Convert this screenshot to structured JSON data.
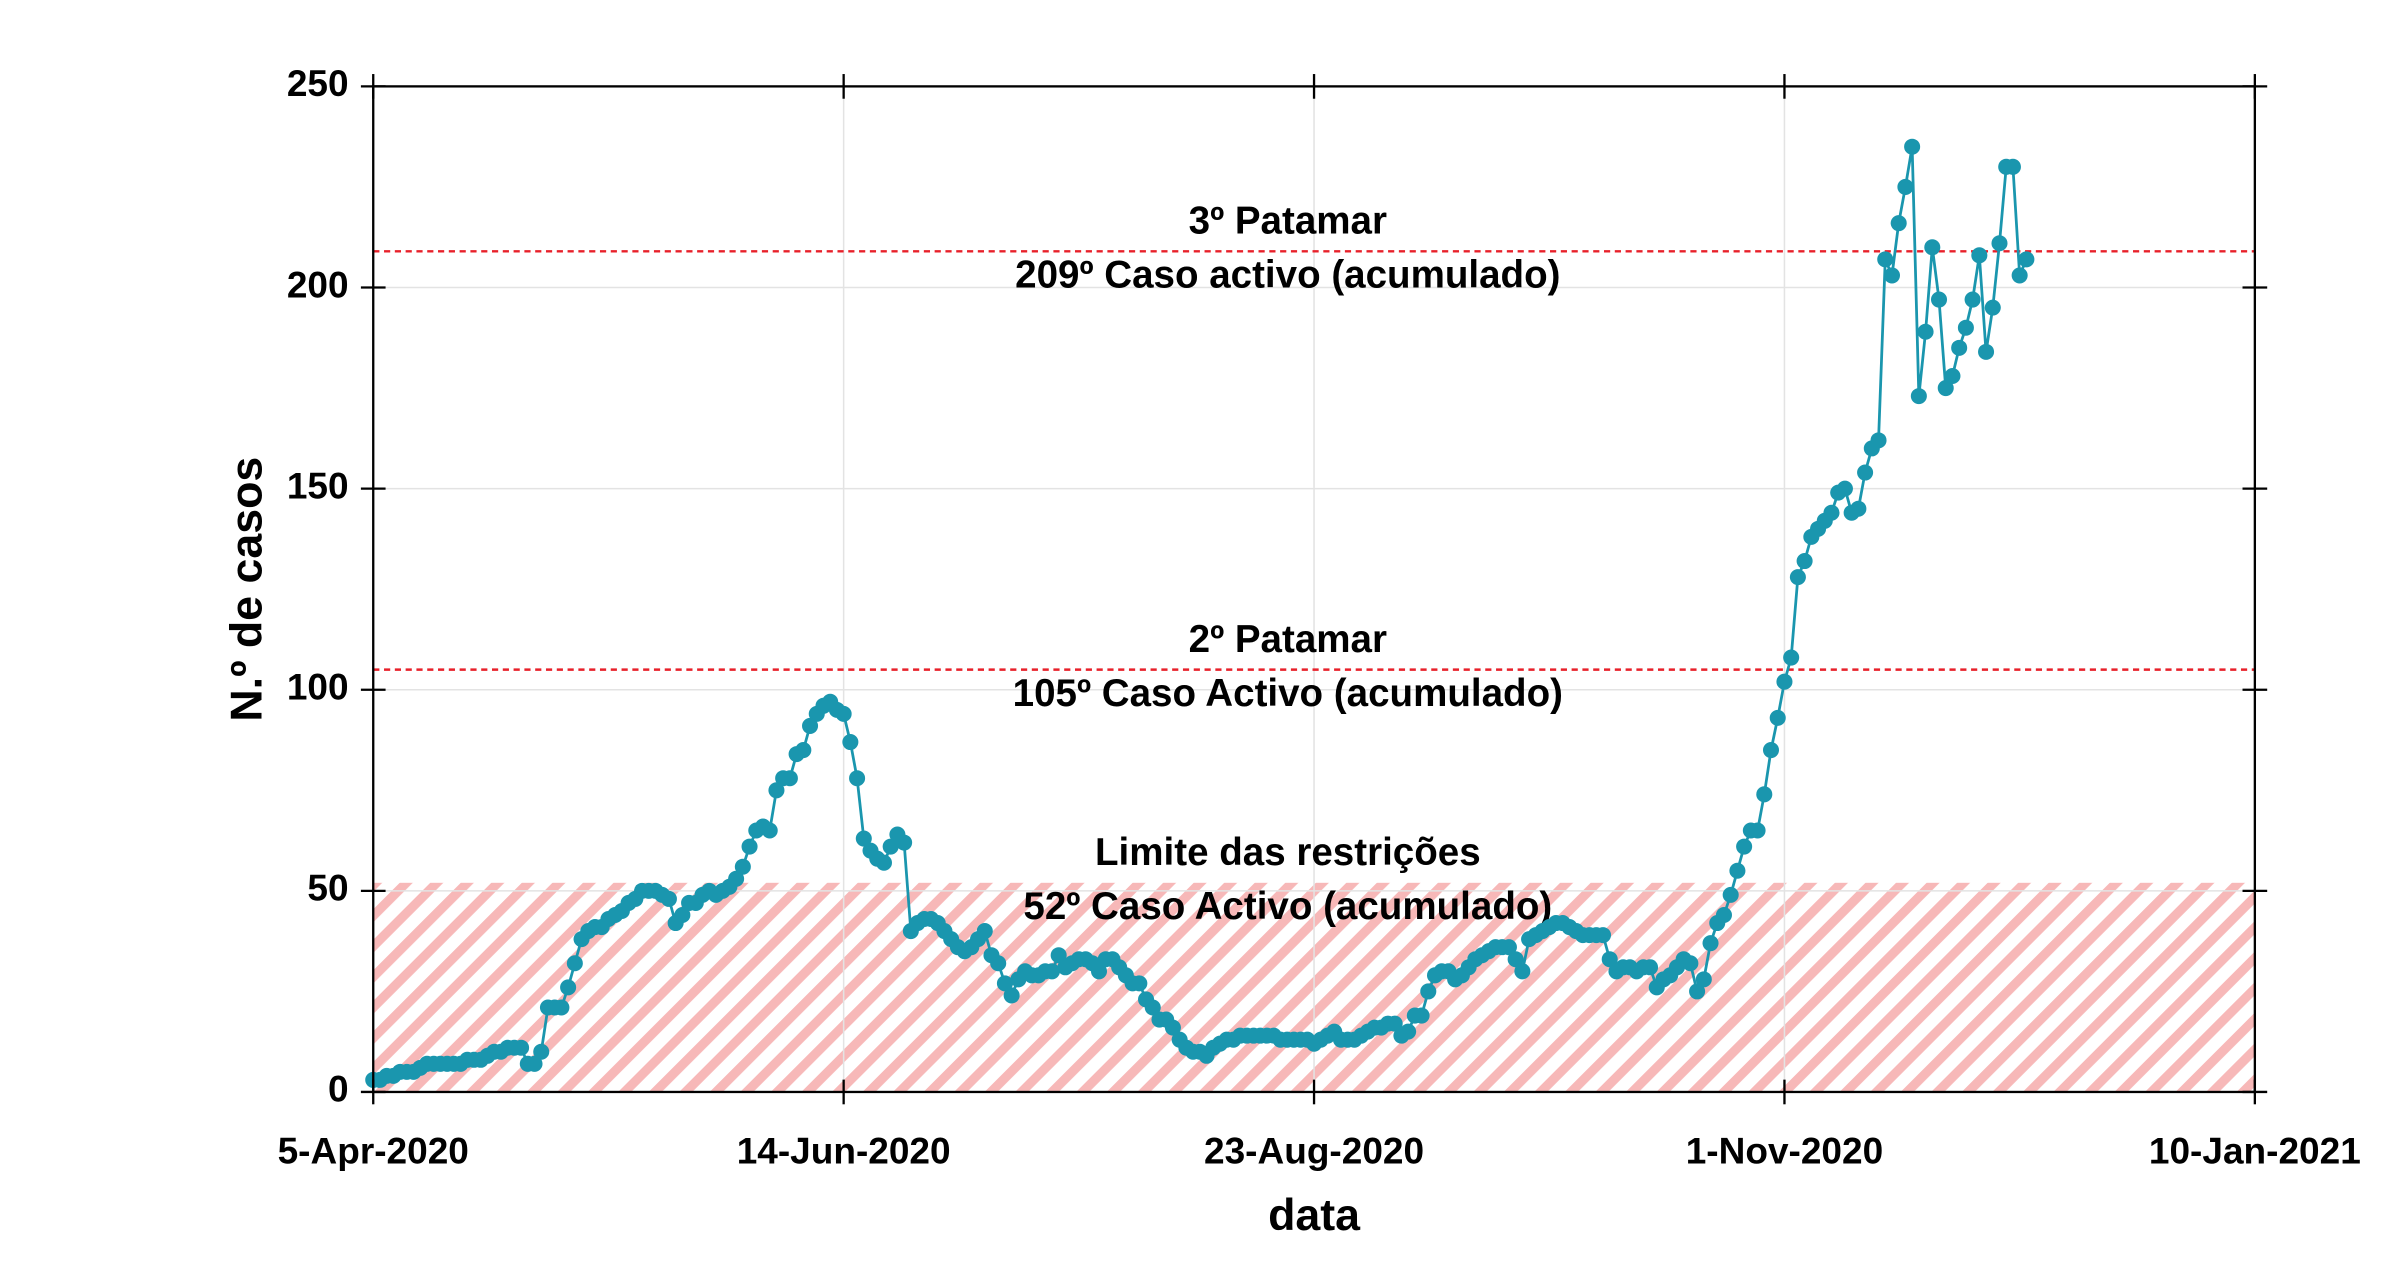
{
  "chart_data": {
    "type": "line",
    "xlabel": "data",
    "ylabel": "N.º de casos",
    "color": "#1a96ae",
    "grid": true,
    "markers": true,
    "xlim": [
      "2020-04-05",
      "2021-01-10"
    ],
    "xticks": [
      {
        "value": "2020-04-05",
        "label": "5-Apr-2020"
      },
      {
        "value": "2020-06-14",
        "label": "14-Jun-2020"
      },
      {
        "value": "2020-08-23",
        "label": "23-Aug-2020"
      },
      {
        "value": "2020-11-01",
        "label": "1-Nov-2020"
      },
      {
        "value": "2021-01-10",
        "label": "10-Jan-2021"
      }
    ],
    "ylim": [
      0,
      250
    ],
    "yticks": [
      0,
      50,
      100,
      150,
      200,
      250
    ],
    "annotations": [
      {
        "style": "line",
        "value": 209,
        "color": "#e8202a",
        "lines": [
          "3º Patamar",
          "209º Caso activo (acumulado)"
        ]
      },
      {
        "style": "line",
        "value": 105,
        "color": "#e8202a",
        "lines": [
          "2º Patamar",
          "105º Caso Activo (acumulado)"
        ]
      },
      {
        "style": "band",
        "value": 52,
        "color": "#f7b8b8",
        "lines": [
          "Limite das restrições",
          "52º Caso Activo (acumulado)"
        ]
      }
    ],
    "x": [
      "2020-04-05",
      "2020-04-06",
      "2020-04-07",
      "2020-04-08",
      "2020-04-09",
      "2020-04-10",
      "2020-04-11",
      "2020-04-12",
      "2020-04-13",
      "2020-04-14",
      "2020-04-15",
      "2020-04-16",
      "2020-04-17",
      "2020-04-18",
      "2020-04-19",
      "2020-04-20",
      "2020-04-21",
      "2020-04-22",
      "2020-04-23",
      "2020-04-24",
      "2020-04-25",
      "2020-04-26",
      "2020-04-27",
      "2020-04-28",
      "2020-04-29",
      "2020-04-30",
      "2020-05-01",
      "2020-05-02",
      "2020-05-03",
      "2020-05-04",
      "2020-05-05",
      "2020-05-06",
      "2020-05-07",
      "2020-05-08",
      "2020-05-09",
      "2020-05-10",
      "2020-05-11",
      "2020-05-12",
      "2020-05-13",
      "2020-05-14",
      "2020-05-15",
      "2020-05-16",
      "2020-05-17",
      "2020-05-18",
      "2020-05-19",
      "2020-05-20",
      "2020-05-21",
      "2020-05-22",
      "2020-05-23",
      "2020-05-24",
      "2020-05-25",
      "2020-05-26",
      "2020-05-27",
      "2020-05-28",
      "2020-05-29",
      "2020-05-30",
      "2020-05-31",
      "2020-06-01",
      "2020-06-02",
      "2020-06-03",
      "2020-06-04",
      "2020-06-05",
      "2020-06-06",
      "2020-06-07",
      "2020-06-08",
      "2020-06-09",
      "2020-06-10",
      "2020-06-11",
      "2020-06-12",
      "2020-06-13",
      "2020-06-14",
      "2020-06-15",
      "2020-06-16",
      "2020-06-17",
      "2020-06-18",
      "2020-06-19",
      "2020-06-20",
      "2020-06-21",
      "2020-06-22",
      "2020-06-23",
      "2020-06-24",
      "2020-06-25",
      "2020-06-26",
      "2020-06-27",
      "2020-06-28",
      "2020-06-29",
      "2020-06-30",
      "2020-07-01",
      "2020-07-02",
      "2020-07-03",
      "2020-07-04",
      "2020-07-05",
      "2020-07-06",
      "2020-07-07",
      "2020-07-08",
      "2020-07-09",
      "2020-07-10",
      "2020-07-11",
      "2020-07-12",
      "2020-07-13",
      "2020-07-14",
      "2020-07-15",
      "2020-07-16",
      "2020-07-17",
      "2020-07-18",
      "2020-07-19",
      "2020-07-20",
      "2020-07-21",
      "2020-07-22",
      "2020-07-23",
      "2020-07-24",
      "2020-07-25",
      "2020-07-26",
      "2020-07-27",
      "2020-07-28",
      "2020-07-29",
      "2020-07-30",
      "2020-07-31",
      "2020-08-01",
      "2020-08-02",
      "2020-08-03",
      "2020-08-04",
      "2020-08-05",
      "2020-08-06",
      "2020-08-07",
      "2020-08-08",
      "2020-08-09",
      "2020-08-10",
      "2020-08-11",
      "2020-08-12",
      "2020-08-13",
      "2020-08-14",
      "2020-08-15",
      "2020-08-16",
      "2020-08-17",
      "2020-08-18",
      "2020-08-19",
      "2020-08-20",
      "2020-08-21",
      "2020-08-22",
      "2020-08-23",
      "2020-08-24",
      "2020-08-25",
      "2020-08-26",
      "2020-08-27",
      "2020-08-28",
      "2020-08-29",
      "2020-08-30",
      "2020-08-31",
      "2020-09-01",
      "2020-09-02",
      "2020-09-03",
      "2020-09-04",
      "2020-09-05",
      "2020-09-06",
      "2020-09-07",
      "2020-09-08",
      "2020-09-09",
      "2020-09-10",
      "2020-09-11",
      "2020-09-12",
      "2020-09-13",
      "2020-09-14",
      "2020-09-15",
      "2020-09-16",
      "2020-09-17",
      "2020-09-18",
      "2020-09-19",
      "2020-09-20",
      "2020-09-21",
      "2020-09-22",
      "2020-09-23",
      "2020-09-24",
      "2020-09-25",
      "2020-09-26",
      "2020-09-27",
      "2020-09-28",
      "2020-09-29",
      "2020-09-30",
      "2020-10-01",
      "2020-10-02",
      "2020-10-03",
      "2020-10-04",
      "2020-10-05",
      "2020-10-06",
      "2020-10-07",
      "2020-10-08",
      "2020-10-09",
      "2020-10-10",
      "2020-10-11",
      "2020-10-12",
      "2020-10-13",
      "2020-10-14",
      "2020-10-15",
      "2020-10-16",
      "2020-10-17",
      "2020-10-18",
      "2020-10-19",
      "2020-10-20",
      "2020-10-21",
      "2020-10-22",
      "2020-10-23",
      "2020-10-24",
      "2020-10-25",
      "2020-10-26",
      "2020-10-27",
      "2020-10-28",
      "2020-10-29",
      "2020-10-30",
      "2020-10-31",
      "2020-11-01",
      "2020-11-02",
      "2020-11-03",
      "2020-11-04",
      "2020-11-05",
      "2020-11-06",
      "2020-11-07",
      "2020-11-08",
      "2020-11-09",
      "2020-11-10",
      "2020-11-11",
      "2020-11-12",
      "2020-11-13",
      "2020-11-14",
      "2020-11-15",
      "2020-11-16",
      "2020-11-17",
      "2020-11-18",
      "2020-11-19",
      "2020-11-20",
      "2020-11-21",
      "2020-11-22",
      "2020-11-23",
      "2020-11-24",
      "2020-11-25",
      "2020-11-26",
      "2020-11-27",
      "2020-11-28",
      "2020-11-29",
      "2020-11-30",
      "2020-12-01",
      "2020-12-02",
      "2020-12-03",
      "2020-12-04",
      "2020-12-05",
      "2020-12-06",
      "2020-12-07"
    ],
    "values": [
      3,
      3,
      4,
      4,
      5,
      5,
      5,
      6,
      7,
      7,
      7,
      7,
      7,
      7,
      8,
      8,
      8,
      9,
      10,
      10,
      11,
      11,
      11,
      7,
      7,
      10,
      21,
      21,
      21,
      26,
      32,
      38,
      40,
      41,
      41,
      43,
      44,
      45,
      47,
      48,
      50,
      50,
      50,
      49,
      48,
      42,
      44,
      47,
      47,
      49,
      50,
      49,
      50,
      51,
      53,
      56,
      61,
      65,
      66,
      65,
      75,
      78,
      78,
      84,
      85,
      91,
      94,
      96,
      97,
      95,
      94,
      87,
      78,
      63,
      60,
      58,
      57,
      61,
      64,
      62,
      40,
      42,
      43,
      43,
      42,
      40,
      38,
      36,
      35,
      36,
      38,
      40,
      34,
      32,
      27,
      24,
      28,
      30,
      29,
      29,
      30,
      30,
      34,
      31,
      32,
      33,
      33,
      32,
      30,
      33,
      33,
      31,
      29,
      27,
      27,
      23,
      21,
      18,
      18,
      16,
      13,
      11,
      10,
      10,
      9,
      11,
      12,
      13,
      13,
      14,
      14,
      14,
      14,
      14,
      14,
      13,
      13,
      13,
      13,
      13,
      12,
      13,
      14,
      15,
      13,
      13,
      13,
      14,
      15,
      16,
      16,
      17,
      17,
      14,
      15,
      19,
      19,
      25,
      29,
      30,
      30,
      28,
      29,
      31,
      33,
      34,
      35,
      36,
      36,
      36,
      33,
      30,
      38,
      39,
      40,
      41,
      42,
      42,
      41,
      40,
      39,
      39,
      39,
      39,
      33,
      30,
      31,
      31,
      30,
      31,
      31,
      26,
      28,
      29,
      31,
      33,
      32,
      25,
      28,
      37,
      42,
      44,
      49,
      55,
      61,
      65,
      65,
      74,
      85,
      93,
      102,
      108,
      128,
      132,
      138,
      140,
      142,
      144,
      149,
      150,
      144,
      145,
      154,
      160,
      162,
      207,
      203,
      216,
      225,
      235,
      173,
      189,
      210,
      197,
      175,
      178,
      185,
      190,
      197,
      208,
      184,
      195,
      211,
      230,
      230,
      203,
      207
    ]
  }
}
